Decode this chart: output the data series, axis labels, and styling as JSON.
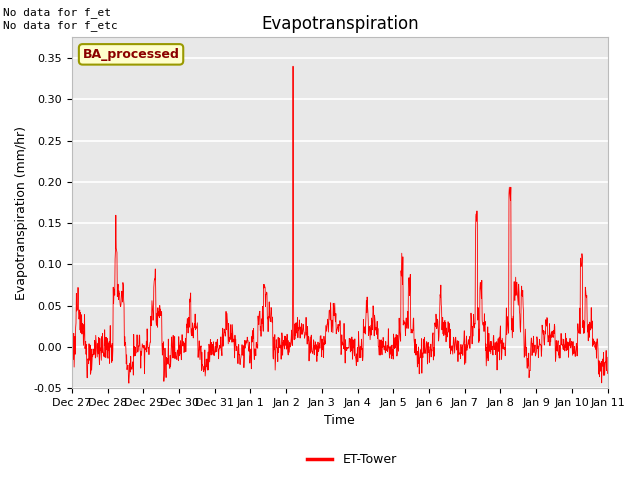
{
  "title": "Evapotranspiration",
  "ylabel": "Evapotranspiration (mm/hr)",
  "xlabel": "Time",
  "ylim": [
    -0.05,
    0.375
  ],
  "yticks": [
    -0.05,
    0.0,
    0.05,
    0.1,
    0.15,
    0.2,
    0.25,
    0.3,
    0.35
  ],
  "annotation_top_left": "No data for f_et\nNo data for f_etc",
  "box_label": "BA_processed",
  "box_facecolor": "#ffffcc",
  "box_edgecolor": "#999900",
  "box_textcolor": "#8B0000",
  "line_color": "#ff0000",
  "line_width": 0.6,
  "background_color": "#e8e8e8",
  "grid_color": "#ffffff",
  "legend_label": "ET-Tower",
  "legend_line_color": "#ff0000",
  "tick_labels": [
    "Dec 27",
    "Dec 28",
    "Dec 29",
    "Dec 30",
    "Dec 31",
    "Jan 1",
    "Jan 2",
    "Jan 3",
    "Jan 4",
    "Jan 5",
    "Jan 6",
    "Jan 7",
    "Jan 8",
    "Jan 9",
    "Jan 10",
    "Jan 11"
  ],
  "num_days": 15,
  "title_fontsize": 12,
  "axis_fontsize": 9,
  "tick_fontsize": 8,
  "annot_fontsize": 8,
  "legend_fontsize": 9
}
